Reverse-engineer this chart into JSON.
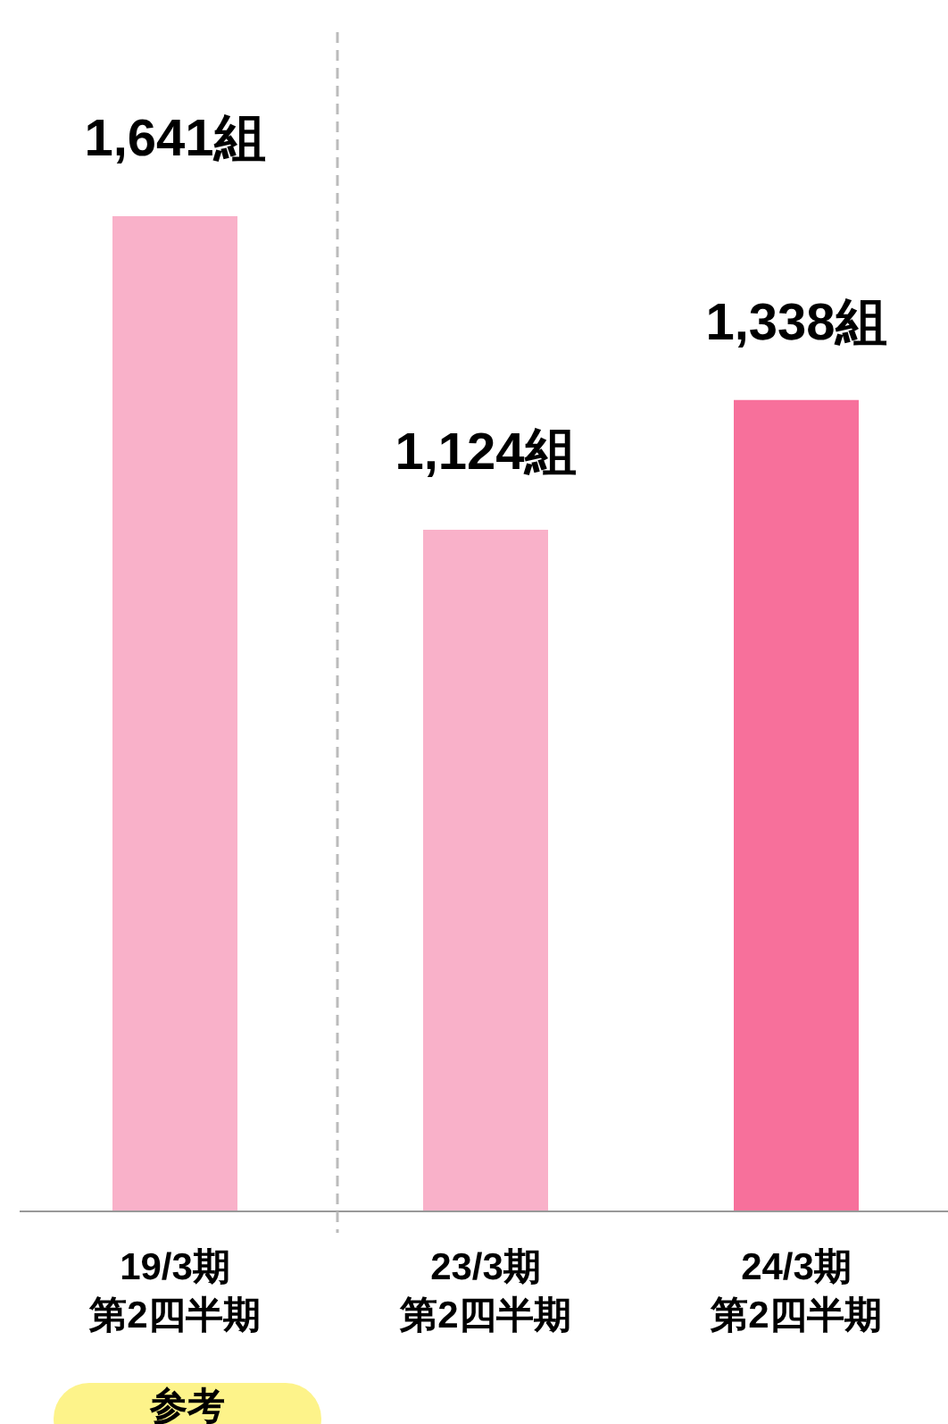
{
  "chart_data": {
    "type": "bar",
    "categories": [
      "19/3期第2四半期",
      "23/3期第2四半期",
      "24/3期第2四半期"
    ],
    "values": [
      1641,
      1124,
      1338
    ],
    "value_labels": [
      "1,641組",
      "1,124組",
      "1,338組"
    ],
    "colors": [
      "#f9b1c9",
      "#f9b1c9",
      "#f7709b"
    ],
    "annotations": [
      "参考"
    ]
  }
}
